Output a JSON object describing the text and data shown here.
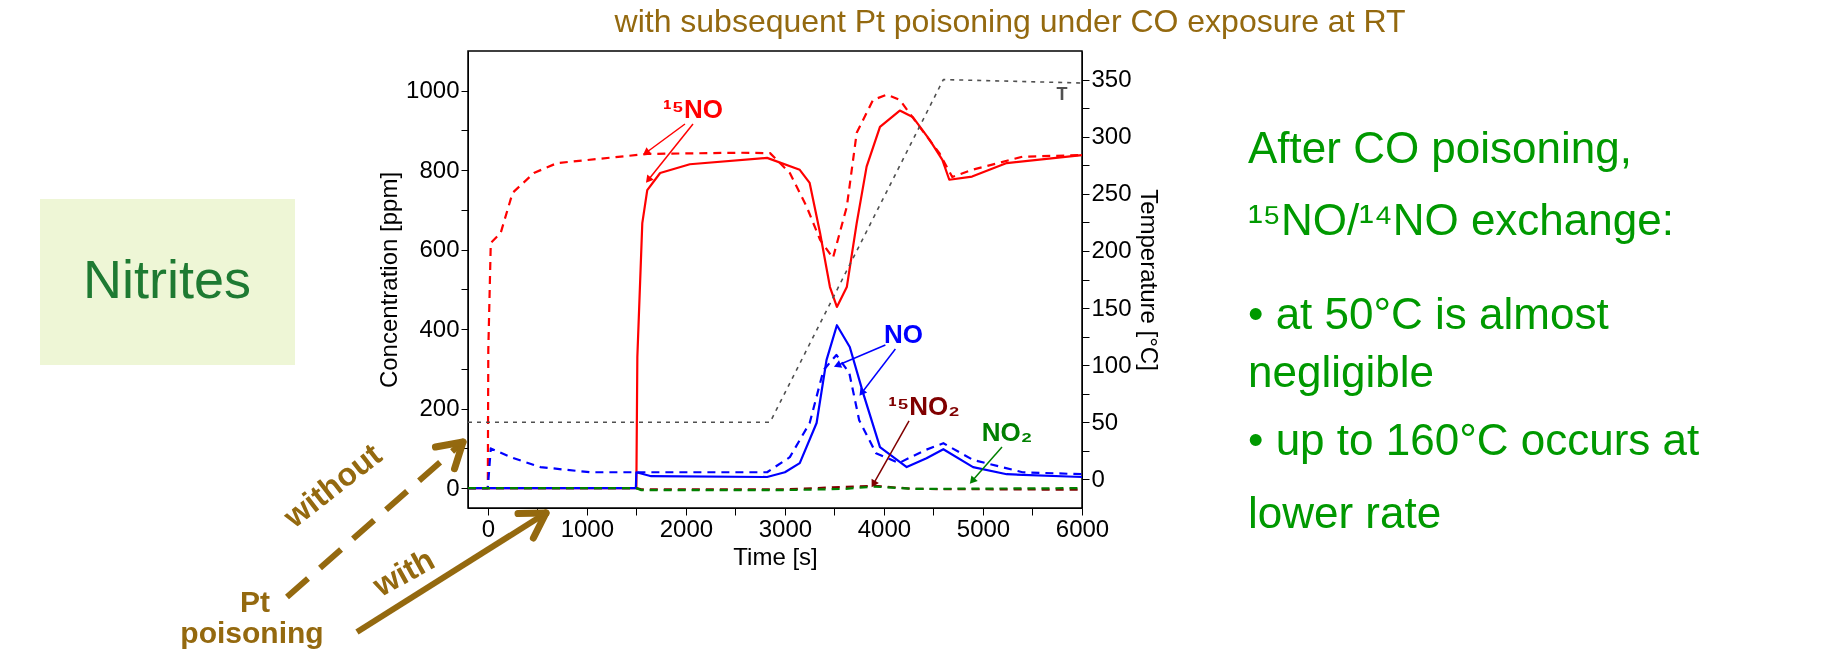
{
  "chart_data": {
    "type": "line",
    "xlabel": "Time [s]",
    "ylabel": "Concentration [ppm]",
    "y2label": "Temperature [°C]",
    "xlim": [
      -200,
      6000
    ],
    "xticks": [
      0,
      {
        "value": 500,
        "label": null
      },
      1000,
      {
        "value": 1500,
        "label": null
      },
      2000,
      {
        "value": 2500,
        "label": null
      },
      3000,
      {
        "value": 3500,
        "label": null
      },
      4000,
      {
        "value": 4500,
        "label": null
      },
      5000,
      {
        "value": 5500,
        "label": null
      },
      6000
    ],
    "ylim": [
      -50,
      1100
    ],
    "yticks": [
      0,
      {
        "value": 100,
        "label": null
      },
      200,
      {
        "value": 300,
        "label": null
      },
      400,
      {
        "value": 500,
        "label": null
      },
      600,
      {
        "value": 700,
        "label": null
      },
      800,
      {
        "value": 900,
        "label": null
      },
      1000
    ],
    "y2lim": [
      -25,
      375
    ],
    "y2ticks": [
      0,
      {
        "value": 25,
        "label": null
      },
      50,
      {
        "value": 75,
        "label": null
      },
      100,
      {
        "value": 125,
        "label": null
      },
      150,
      {
        "value": 175,
        "label": null
      },
      200,
      {
        "value": 225,
        "label": null
      },
      250,
      {
        "value": 275,
        "label": null
      },
      300,
      {
        "value": 325,
        "label": null
      },
      350
    ],
    "grid": false,
    "series": [
      {
        "color": "#ff0000",
        "line_style": "dashed",
        "x": [
          -200,
          0,
          5,
          30,
          130,
          250,
          465,
          700,
          1610,
          2548,
          2850,
          3050,
          3220,
          3355,
          3485,
          3625,
          3725,
          3890,
          4030,
          4160,
          4360,
          4560,
          4690,
          4890,
          5400,
          6000
        ],
        "values": [
          0,
          0,
          348,
          617,
          642,
          743,
          793,
          818,
          841,
          844,
          843,
          793,
          708,
          625,
          579,
          708,
          894,
          977,
          990,
          977,
          909,
          843,
          783,
          801,
          834,
          838
        ]
      },
      {
        "color": "#ff0000",
        "line_style": "solid",
        "x": [
          -200,
          1500,
          1510,
          1560,
          1610,
          1740,
          2040,
          2820,
          3150,
          3250,
          3355,
          3455,
          3525,
          3625,
          3725,
          3825,
          3960,
          4160,
          4290,
          4460,
          4590,
          4660,
          4890,
          5240,
          6000
        ],
        "values": [
          0,
          0,
          330,
          667,
          750,
          793,
          815,
          831,
          801,
          768,
          642,
          506,
          456,
          506,
          667,
          809,
          909,
          950,
          934,
          877,
          826,
          776,
          784,
          818,
          838
        ]
      },
      {
        "color": "#0000ff",
        "line_style": "solid",
        "x": [
          -200,
          1495,
          1500,
          1650,
          2820,
          3000,
          3150,
          3320,
          3420,
          3525,
          3655,
          3790,
          3960,
          4230,
          4430,
          4600,
          4900,
          5240,
          6000
        ],
        "values": [
          0,
          0,
          40,
          30,
          28,
          40,
          63,
          164,
          322,
          410,
          355,
          239,
          103,
          53,
          75,
          98,
          53,
          35,
          28
        ]
      },
      {
        "color": "#0000ff",
        "line_style": "dashed",
        "x": [
          -200,
          0,
          30,
          230,
          530,
          1030,
          2820,
          3050,
          3250,
          3390,
          3520,
          3650,
          3750,
          3920,
          4150,
          4420,
          4600,
          4900,
          5400,
          6000
        ],
        "values": [
          0,
          0,
          100,
          78,
          53,
          40,
          40,
          78,
          164,
          297,
          335,
          290,
          171,
          88,
          63,
          96,
          113,
          71,
          40,
          35
        ]
      },
      {
        "color": "#800000",
        "line_style": "dashed",
        "x": [
          -200,
          1500,
          1550,
          3000,
          3900,
          4300,
          6000
        ],
        "values": [
          0,
          0,
          -3,
          -3,
          6,
          -2,
          -4
        ]
      },
      {
        "color": "#008000",
        "line_style": "dashed",
        "x": [
          -200,
          1500,
          1550,
          3000,
          3600,
          3900,
          4300,
          6000
        ],
        "values": [
          0,
          0,
          -5,
          -5,
          -2,
          4,
          -2,
          0
        ]
      },
      {
        "color": "#505050",
        "line_style": "dashed",
        "axis": "y2",
        "x": [
          -200,
          2850,
          4600,
          6000
        ],
        "values": [
          50,
          50,
          350,
          347
        ]
      }
    ],
    "annotations": [
      "with subsequent Pt poisoning under CO exposure at RT",
      "Nitrites",
      "After CO poisoning,",
      "¹⁵NO/¹⁴NO exchange:",
      "• at 50°C is almost",
      "negligible",
      "• up to 160°C occurs at",
      "lower rate",
      "without",
      "with",
      "Pt",
      "poisoning",
      "¹⁵NO",
      {
        "text": "NO",
        "x": 3540,
        "y": 310
      },
      {
        "text": "¹⁵NO₂",
        "x": 3900,
        "y": 13
      },
      "NO₂",
      "T"
    ]
  }
}
